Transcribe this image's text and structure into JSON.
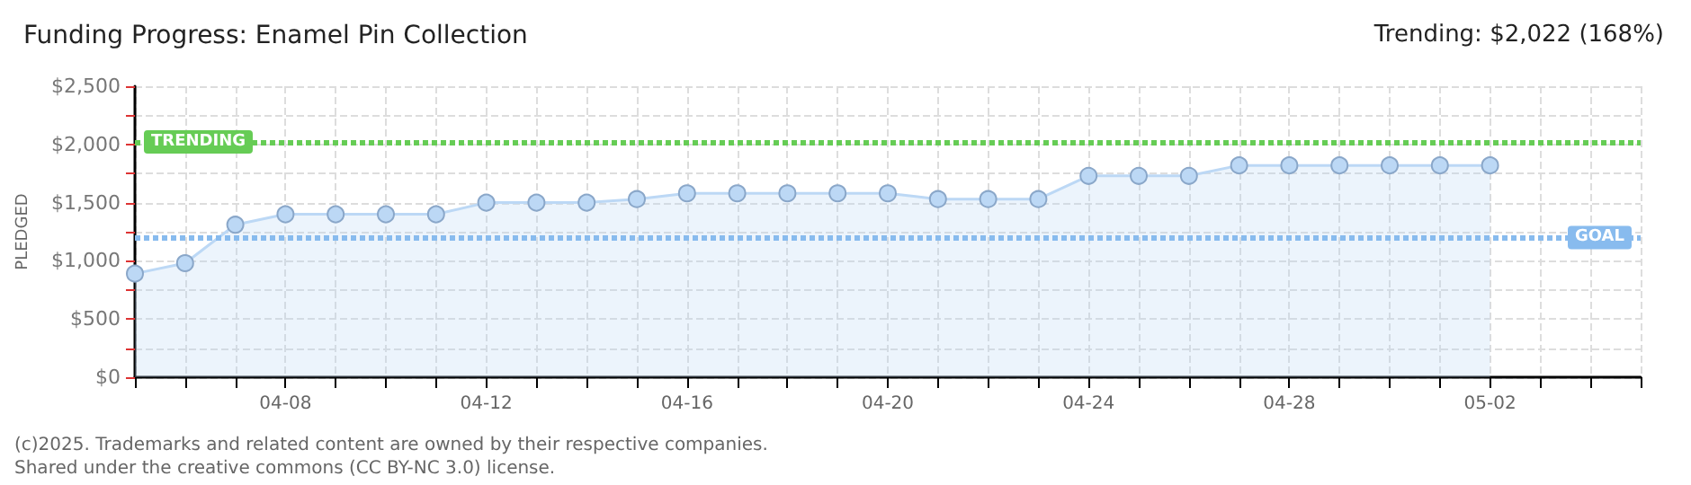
{
  "chart_data": {
    "type": "area",
    "title": "Funding Progress: Enamel Pin Collection",
    "subtitle": "Trending: $2,022 (168%)",
    "ylabel": "PLEDGED",
    "categories": [
      null,
      null,
      null,
      "04-08",
      null,
      null,
      null,
      "04-12",
      null,
      null,
      null,
      "04-16",
      null,
      null,
      null,
      "04-20",
      null,
      null,
      null,
      "04-24",
      null,
      null,
      null,
      "04-28",
      null,
      null,
      null,
      "05-02",
      null,
      null,
      null
    ],
    "series": [
      {
        "color": "#bcd8f5",
        "values": [
          890,
          980,
          1310,
          1400,
          1400,
          1400,
          1400,
          1500,
          1500,
          1500,
          1530,
          1580,
          1580,
          1580,
          1580,
          1580,
          1530,
          1530,
          1530,
          1730,
          1730,
          1730,
          1820,
          1820,
          1820,
          1820,
          1820,
          1820,
          null,
          null,
          null
        ]
      }
    ],
    "ylim": [
      0,
      2500
    ],
    "yticks": [
      {
        "value": 0,
        "label": "$0"
      },
      {
        "value": 250,
        "label": null
      },
      {
        "value": 500,
        "label": "$500"
      },
      {
        "value": 750,
        "label": null
      },
      {
        "value": 1000,
        "label": "$1,000"
      },
      {
        "value": 1250,
        "label": null
      },
      {
        "value": 1500,
        "label": "$1,500"
      },
      {
        "value": 1750,
        "label": null
      },
      {
        "value": 2000,
        "label": "$2,000"
      },
      {
        "value": 2250,
        "label": null
      },
      {
        "value": 2500,
        "label": "$2,500"
      }
    ],
    "ref_lines": [
      {
        "axis": "y",
        "value": 2022,
        "label": "TRENDING",
        "color": "#66cc55",
        "line_style": "dotted"
      },
      {
        "axis": "y",
        "value": 1200,
        "label": "GOAL",
        "color": "#88bbee",
        "line_style": "dotted"
      }
    ],
    "grid": true,
    "marker": "circle",
    "annotations": [
      "(c)2025. Trademarks and related content are owned by their respective companies.",
      "Shared under the creative commons (CC BY-NC 3.0) license."
    ]
  }
}
